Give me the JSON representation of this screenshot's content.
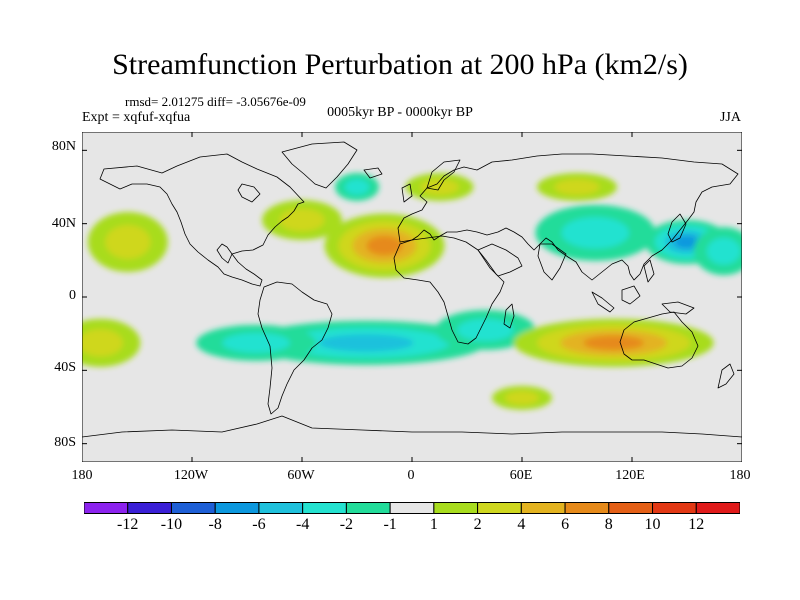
{
  "title": "Streamfunction Perturbation at 200 hPa (km2/s)",
  "stats": "rmsd= 2.01275 diff= -3.05676e-09",
  "experiment": "Expt = xqfuf-xqfua",
  "period": "0005kyr BP - 0000kyr BP",
  "season": "JJA",
  "lat_ticks": [
    "80N",
    "40N",
    "0",
    "40S",
    "80S"
  ],
  "lon_ticks": [
    "180",
    "120W",
    "60W",
    "0",
    "60E",
    "120E",
    "180"
  ],
  "colors": {
    "background": "#e6e6e6",
    "coast": "#000000",
    "palette": [
      "#8c23ee",
      "#3a1fd6",
      "#1e5fd6",
      "#0c98de",
      "#1fc1dc",
      "#24e2d0",
      "#22dc9a",
      "#e6e6e6",
      "#a8dc1e",
      "#cfd71f",
      "#e3b320",
      "#e68a1a",
      "#e45f16",
      "#e23814",
      "#e01a1a"
    ]
  },
  "colorbar_labels": [
    "-12",
    "-10",
    "-8",
    "-6",
    "-4",
    "-2",
    "-1",
    "1",
    "2",
    "4",
    "6",
    "8",
    "10",
    "12"
  ],
  "chart_data": {
    "type": "heatmap",
    "title": "Streamfunction Perturbation at 200 hPa (km2/s)",
    "units": "km2/s",
    "contour_levels": [
      -12,
      -10,
      -8,
      -6,
      -4,
      -2,
      -1,
      1,
      2,
      4,
      6,
      8,
      10,
      12
    ],
    "lon_range": [
      -180,
      180
    ],
    "lat_range": [
      -90,
      90
    ],
    "features": [
      {
        "name": "north-atlantic-high",
        "lon": -15,
        "lat": 28,
        "peak": 7
      },
      {
        "name": "north-atlantic-ridge",
        "lon": -60,
        "lat": 42,
        "peak": 3.5
      },
      {
        "name": "north-pacific-low",
        "lon": 150,
        "lat": 30,
        "peak": -6
      },
      {
        "name": "central-asia-low",
        "lon": 100,
        "lat": 35,
        "peak": -3
      },
      {
        "name": "north-pacific-west-low",
        "lon": 170,
        "lat": 25,
        "peak": -3
      },
      {
        "name": "south-atlantic-low",
        "lon": -25,
        "lat": -25,
        "peak": -5
      },
      {
        "name": "south-pacific-low",
        "lon": -85,
        "lat": -25,
        "peak": -3
      },
      {
        "name": "indian-ocean-low",
        "lon": 40,
        "lat": -18,
        "peak": -3
      },
      {
        "name": "australia-high",
        "lon": 110,
        "lat": -25,
        "peak": 6
      },
      {
        "name": "east-pacific-high",
        "lon": -155,
        "lat": 30,
        "peak": 2.5
      },
      {
        "name": "north-europe-high",
        "lon": 15,
        "lat": 60,
        "peak": 3
      },
      {
        "name": "greenland-low",
        "lon": -30,
        "lat": 60,
        "peak": -3
      },
      {
        "name": "siberia-high",
        "lon": 90,
        "lat": 60,
        "peak": 2.5
      },
      {
        "name": "south-pacific-high",
        "lon": -170,
        "lat": -25,
        "peak": 2.5
      },
      {
        "name": "southern-ocean-high",
        "lon": 60,
        "lat": -55,
        "peak": 2.5
      }
    ]
  }
}
